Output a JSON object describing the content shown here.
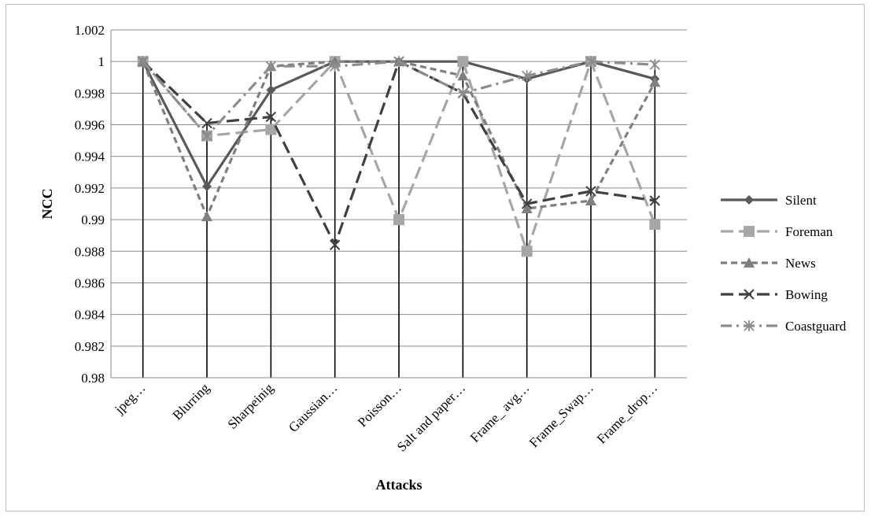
{
  "chart_data": {
    "type": "line",
    "title": "",
    "xlabel": "Attacks",
    "ylabel": "NCC",
    "ylim": [
      0.98,
      1.002
    ],
    "ytick_step": 0.002,
    "yticks": [
      "0.98",
      "0.982",
      "0.984",
      "0.986",
      "0.988",
      "0.99",
      "0.992",
      "0.994",
      "0.996",
      "0.998",
      "1",
      "1.002"
    ],
    "grid": "horizontal",
    "legend_position": "right",
    "categories": [
      "jpeg…",
      "Blurring",
      "Sharpeinig",
      "Gaussian…",
      "Poisson…",
      "Salt and paper…",
      "Frame_ avg…",
      "Frame_Swap…",
      "Frame_drop…"
    ],
    "series": [
      {
        "name": "Silent",
        "color": "#595959",
        "dash": "solid",
        "marker": "diamond",
        "values": [
          1.0,
          0.9921,
          0.9982,
          1.0,
          1.0,
          1.0,
          0.9989,
          1.0,
          0.9989
        ]
      },
      {
        "name": "Foreman",
        "color": "#a6a6a6",
        "dash": "longdash",
        "marker": "square",
        "values": [
          1.0,
          0.9953,
          0.9957,
          1.0,
          0.99,
          1.0,
          0.988,
          1.0,
          0.9897
        ]
      },
      {
        "name": "News",
        "color": "#7f7f7f",
        "dash": "dash",
        "marker": "triangle",
        "values": [
          1.0,
          0.9902,
          0.9997,
          1.0,
          1.0,
          0.9991,
          0.9907,
          0.9912,
          0.9987
        ]
      },
      {
        "name": "Bowing",
        "color": "#404040",
        "dash": "longdash",
        "marker": "x",
        "values": [
          1.0,
          0.9961,
          0.9965,
          0.9884,
          1.0,
          0.998,
          0.991,
          0.9918,
          0.9912
        ]
      },
      {
        "name": "Coastguard",
        "color": "#8c8c8c",
        "dash": "dashdot",
        "marker": "asterisk",
        "values": [
          1.0,
          0.9953,
          0.9997,
          0.9997,
          1.0,
          0.998,
          0.9991,
          1.0,
          0.9998
        ]
      }
    ]
  }
}
